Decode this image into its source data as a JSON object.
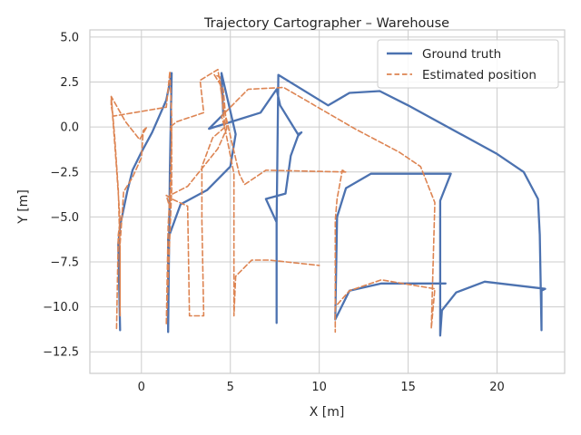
{
  "chart_data": {
    "type": "line",
    "title": "Trajectory Cartographer – Warehouse",
    "xlabel": "X [m]",
    "ylabel": "Y [m]",
    "xlim": [
      -2.9,
      23.8
    ],
    "ylim": [
      -13.7,
      5.4
    ],
    "xticks": [
      0,
      5,
      10,
      15,
      20
    ],
    "xtick_labels": [
      "0",
      "5",
      "10",
      "15",
      "20"
    ],
    "yticks": [
      5,
      2.5,
      0,
      -2.5,
      -5,
      -7.5,
      -10,
      -12.5
    ],
    "ytick_labels": [
      "5.0",
      "2.5",
      "0.0",
      "−2.5",
      "−5.0",
      "−7.5",
      "−10.0",
      "−12.5"
    ],
    "grid": true,
    "legend_position": "top-right",
    "series": [
      {
        "name": "Ground truth",
        "color": "#4c72b0",
        "style": "solid",
        "points": [
          [
            -1.2,
            -11.3
          ],
          [
            -1.3,
            -6.5
          ],
          [
            -1.2,
            -5.5
          ],
          [
            -0.8,
            -3.6
          ],
          [
            -0.5,
            -2.4
          ],
          [
            0.0,
            -1.4
          ],
          [
            0.6,
            -0.3
          ],
          [
            1.4,
            1.5
          ],
          [
            1.7,
            3.0
          ],
          [
            1.6,
            -2.5
          ],
          [
            1.5,
            -11.4
          ],
          [
            1.5,
            -6.2
          ],
          [
            2.2,
            -4.3
          ],
          [
            3.7,
            -3.5
          ],
          [
            5.0,
            -2.2
          ],
          [
            5.3,
            -0.4
          ],
          [
            4.5,
            3.0
          ],
          [
            4.6,
            0.7
          ],
          [
            3.8,
            -0.1
          ],
          [
            6.7,
            0.8
          ],
          [
            7.6,
            2.1
          ],
          [
            7.8,
            1.2
          ],
          [
            8.8,
            -0.4
          ],
          [
            9.0,
            -0.3
          ],
          [
            8.8,
            -0.5
          ],
          [
            8.4,
            -1.6
          ],
          [
            8.1,
            -3.7
          ],
          [
            7.0,
            -4.0
          ],
          [
            7.6,
            -5.3
          ],
          [
            7.6,
            -10.9
          ],
          [
            7.6,
            -5.3
          ],
          [
            7.7,
            2.9
          ],
          [
            10.5,
            1.2
          ],
          [
            11.7,
            1.9
          ],
          [
            13.4,
            2.0
          ],
          [
            15.0,
            1.2
          ],
          [
            20.0,
            -1.5
          ],
          [
            21.5,
            -2.5
          ],
          [
            22.3,
            -4.0
          ],
          [
            22.4,
            -6.0
          ],
          [
            22.5,
            -11.3
          ],
          [
            22.5,
            -9.1
          ],
          [
            22.7,
            -9.0
          ],
          [
            19.3,
            -8.6
          ],
          [
            17.7,
            -9.2
          ],
          [
            16.9,
            -10.2
          ],
          [
            16.8,
            -11.6
          ],
          [
            16.8,
            -4.1
          ],
          [
            17.4,
            -2.6
          ],
          [
            12.9,
            -2.6
          ],
          [
            11.5,
            -3.4
          ],
          [
            11.0,
            -5.0
          ],
          [
            10.9,
            -10.7
          ],
          [
            11.7,
            -9.1
          ],
          [
            13.5,
            -8.7
          ],
          [
            15.7,
            -8.7
          ],
          [
            17.1,
            -8.7
          ]
        ]
      },
      {
        "name": "Estimated position",
        "color": "#dd8452",
        "style": "dashed",
        "points": [
          [
            -1.4,
            -11.2
          ],
          [
            -1.3,
            -6.0
          ],
          [
            -1.2,
            -5.2
          ],
          [
            -1.4,
            -2.3
          ],
          [
            -1.7,
            1.7
          ],
          [
            -0.9,
            0.3
          ],
          [
            -0.1,
            -0.7
          ],
          [
            0.3,
            0.0
          ],
          [
            0.1,
            -0.2
          ],
          [
            0.0,
            -1.7
          ],
          [
            -0.5,
            -2.8
          ],
          [
            -1.0,
            -3.6
          ],
          [
            -1.2,
            -6.5
          ],
          [
            -1.2,
            -10.5
          ],
          [
            -1.2,
            -7.0
          ],
          [
            -1.3,
            -3.5
          ],
          [
            -1.5,
            -0.6
          ],
          [
            -1.7,
            1.7
          ],
          [
            -1.7,
            1.2
          ],
          [
            -1.6,
            0.6
          ],
          [
            1.4,
            1.1
          ],
          [
            1.6,
            3.1
          ],
          [
            1.7,
            0.6
          ],
          [
            1.7,
            -3.5
          ],
          [
            1.4,
            -11.0
          ],
          [
            1.5,
            -5.5
          ],
          [
            1.6,
            -3.8
          ],
          [
            2.6,
            -3.3
          ],
          [
            4.3,
            -1.2
          ],
          [
            4.8,
            -0.1
          ],
          [
            4.6,
            2.1
          ],
          [
            4.1,
            2.9
          ],
          [
            4.4,
            2.8
          ],
          [
            4.7,
            0.0
          ],
          [
            4.0,
            -0.6
          ],
          [
            3.4,
            -2.2
          ],
          [
            3.4,
            -5.2
          ],
          [
            3.5,
            -10.5
          ],
          [
            2.7,
            -10.5
          ],
          [
            2.6,
            -4.4
          ],
          [
            1.7,
            -4.0
          ],
          [
            1.4,
            -3.8
          ],
          [
            1.6,
            -4.5
          ],
          [
            1.7,
            -0.3
          ],
          [
            1.6,
            0.0
          ],
          [
            2.0,
            0.3
          ],
          [
            3.5,
            0.8
          ],
          [
            3.3,
            2.6
          ],
          [
            4.3,
            3.2
          ],
          [
            4.6,
            1.2
          ],
          [
            5.5,
            -2.6
          ],
          [
            5.8,
            -3.2
          ],
          [
            7.0,
            -2.4
          ],
          [
            11.5,
            -2.5
          ],
          [
            11.3,
            -2.4
          ],
          [
            11.0,
            -4.0
          ],
          [
            10.9,
            -5.2
          ],
          [
            10.9,
            -11.4
          ],
          [
            10.9,
            -10.0
          ],
          [
            11.7,
            -9.1
          ],
          [
            13.5,
            -8.5
          ],
          [
            16.5,
            -9.0
          ],
          [
            16.3,
            -11.2
          ],
          [
            16.5,
            -4.2
          ],
          [
            15.7,
            -2.2
          ],
          [
            14.5,
            -1.4
          ],
          [
            12.0,
            -0.1
          ],
          [
            8.0,
            2.2
          ],
          [
            6.0,
            2.1
          ],
          [
            4.5,
            0.6
          ],
          [
            4.7,
            -0.1
          ],
          [
            5.2,
            -2.6
          ],
          [
            5.2,
            -5.5
          ],
          [
            5.2,
            -10.5
          ],
          [
            5.3,
            -8.3
          ],
          [
            6.2,
            -7.4
          ],
          [
            7.2,
            -7.4
          ],
          [
            10.0,
            -7.7
          ]
        ]
      }
    ]
  }
}
